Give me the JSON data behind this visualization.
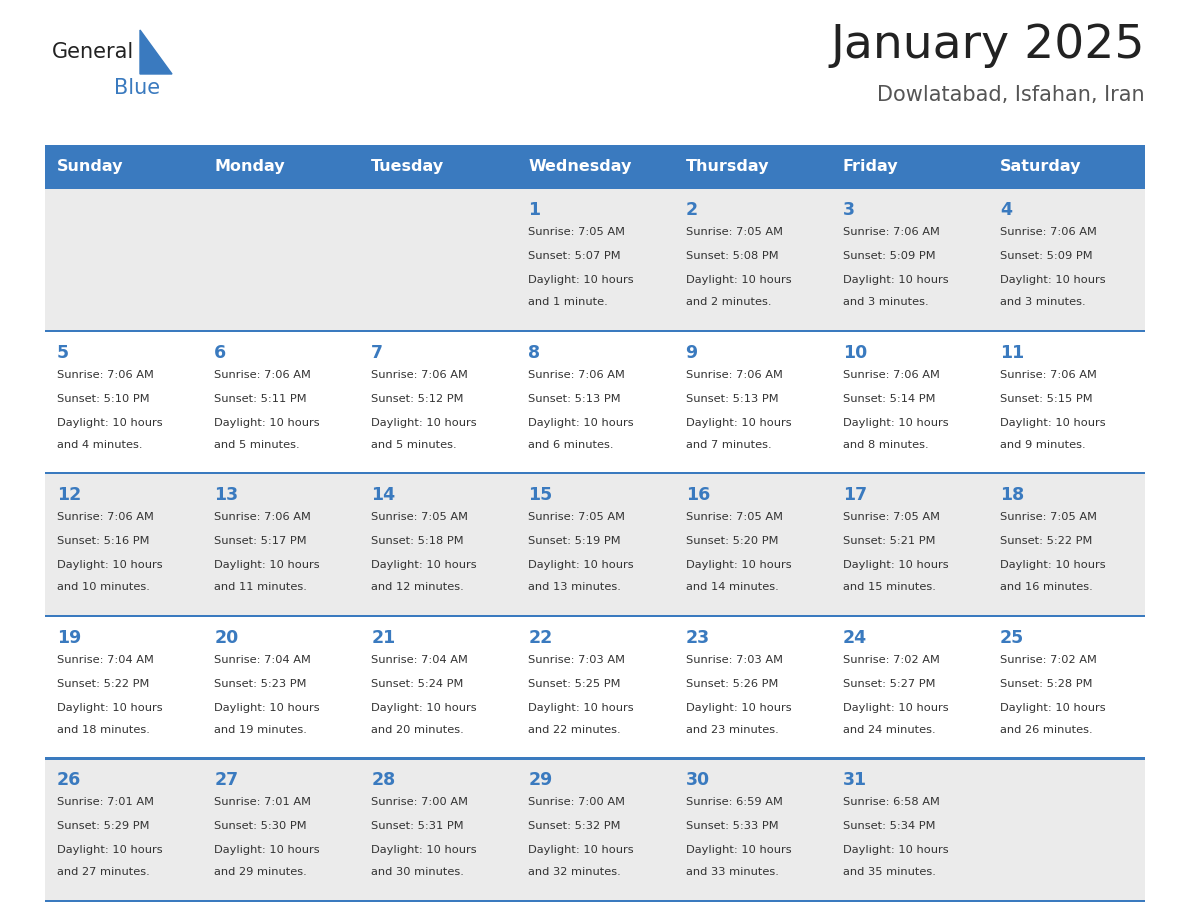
{
  "title": "January 2025",
  "subtitle": "Dowlatabad, Isfahan, Iran",
  "days_of_week": [
    "Sunday",
    "Monday",
    "Tuesday",
    "Wednesday",
    "Thursday",
    "Friday",
    "Saturday"
  ],
  "header_bg_color": "#3a7abf",
  "header_text_color": "#ffffff",
  "row_bg_even": "#ebebeb",
  "row_bg_odd": "#ffffff",
  "separator_color": "#3a7abf",
  "day_number_color": "#3a7abf",
  "cell_text_color": "#333333",
  "title_color": "#222222",
  "subtitle_color": "#555555",
  "logo_general_color": "#222222",
  "logo_blue_color": "#3a7abf",
  "calendar_data": [
    [
      {
        "day": null,
        "sunrise": null,
        "sunset": null,
        "daylight": null
      },
      {
        "day": null,
        "sunrise": null,
        "sunset": null,
        "daylight": null
      },
      {
        "day": null,
        "sunrise": null,
        "sunset": null,
        "daylight": null
      },
      {
        "day": 1,
        "sunrise": "7:05 AM",
        "sunset": "5:07 PM",
        "daylight": "10 hours and 1 minute."
      },
      {
        "day": 2,
        "sunrise": "7:05 AM",
        "sunset": "5:08 PM",
        "daylight": "10 hours and 2 minutes."
      },
      {
        "day": 3,
        "sunrise": "7:06 AM",
        "sunset": "5:09 PM",
        "daylight": "10 hours and 3 minutes."
      },
      {
        "day": 4,
        "sunrise": "7:06 AM",
        "sunset": "5:09 PM",
        "daylight": "10 hours and 3 minutes."
      }
    ],
    [
      {
        "day": 5,
        "sunrise": "7:06 AM",
        "sunset": "5:10 PM",
        "daylight": "10 hours and 4 minutes."
      },
      {
        "day": 6,
        "sunrise": "7:06 AM",
        "sunset": "5:11 PM",
        "daylight": "10 hours and 5 minutes."
      },
      {
        "day": 7,
        "sunrise": "7:06 AM",
        "sunset": "5:12 PM",
        "daylight": "10 hours and 5 minutes."
      },
      {
        "day": 8,
        "sunrise": "7:06 AM",
        "sunset": "5:13 PM",
        "daylight": "10 hours and 6 minutes."
      },
      {
        "day": 9,
        "sunrise": "7:06 AM",
        "sunset": "5:13 PM",
        "daylight": "10 hours and 7 minutes."
      },
      {
        "day": 10,
        "sunrise": "7:06 AM",
        "sunset": "5:14 PM",
        "daylight": "10 hours and 8 minutes."
      },
      {
        "day": 11,
        "sunrise": "7:06 AM",
        "sunset": "5:15 PM",
        "daylight": "10 hours and 9 minutes."
      }
    ],
    [
      {
        "day": 12,
        "sunrise": "7:06 AM",
        "sunset": "5:16 PM",
        "daylight": "10 hours and 10 minutes."
      },
      {
        "day": 13,
        "sunrise": "7:06 AM",
        "sunset": "5:17 PM",
        "daylight": "10 hours and 11 minutes."
      },
      {
        "day": 14,
        "sunrise": "7:05 AM",
        "sunset": "5:18 PM",
        "daylight": "10 hours and 12 minutes."
      },
      {
        "day": 15,
        "sunrise": "7:05 AM",
        "sunset": "5:19 PM",
        "daylight": "10 hours and 13 minutes."
      },
      {
        "day": 16,
        "sunrise": "7:05 AM",
        "sunset": "5:20 PM",
        "daylight": "10 hours and 14 minutes."
      },
      {
        "day": 17,
        "sunrise": "7:05 AM",
        "sunset": "5:21 PM",
        "daylight": "10 hours and 15 minutes."
      },
      {
        "day": 18,
        "sunrise": "7:05 AM",
        "sunset": "5:22 PM",
        "daylight": "10 hours and 16 minutes."
      }
    ],
    [
      {
        "day": 19,
        "sunrise": "7:04 AM",
        "sunset": "5:22 PM",
        "daylight": "10 hours and 18 minutes."
      },
      {
        "day": 20,
        "sunrise": "7:04 AM",
        "sunset": "5:23 PM",
        "daylight": "10 hours and 19 minutes."
      },
      {
        "day": 21,
        "sunrise": "7:04 AM",
        "sunset": "5:24 PM",
        "daylight": "10 hours and 20 minutes."
      },
      {
        "day": 22,
        "sunrise": "7:03 AM",
        "sunset": "5:25 PM",
        "daylight": "10 hours and 22 minutes."
      },
      {
        "day": 23,
        "sunrise": "7:03 AM",
        "sunset": "5:26 PM",
        "daylight": "10 hours and 23 minutes."
      },
      {
        "day": 24,
        "sunrise": "7:02 AM",
        "sunset": "5:27 PM",
        "daylight": "10 hours and 24 minutes."
      },
      {
        "day": 25,
        "sunrise": "7:02 AM",
        "sunset": "5:28 PM",
        "daylight": "10 hours and 26 minutes."
      }
    ],
    [
      {
        "day": 26,
        "sunrise": "7:01 AM",
        "sunset": "5:29 PM",
        "daylight": "10 hours and 27 minutes."
      },
      {
        "day": 27,
        "sunrise": "7:01 AM",
        "sunset": "5:30 PM",
        "daylight": "10 hours and 29 minutes."
      },
      {
        "day": 28,
        "sunrise": "7:00 AM",
        "sunset": "5:31 PM",
        "daylight": "10 hours and 30 minutes."
      },
      {
        "day": 29,
        "sunrise": "7:00 AM",
        "sunset": "5:32 PM",
        "daylight": "10 hours and 32 minutes."
      },
      {
        "day": 30,
        "sunrise": "6:59 AM",
        "sunset": "5:33 PM",
        "daylight": "10 hours and 33 minutes."
      },
      {
        "day": 31,
        "sunrise": "6:58 AM",
        "sunset": "5:34 PM",
        "daylight": "10 hours and 35 minutes."
      },
      {
        "day": null,
        "sunrise": null,
        "sunset": null,
        "daylight": null
      }
    ]
  ]
}
